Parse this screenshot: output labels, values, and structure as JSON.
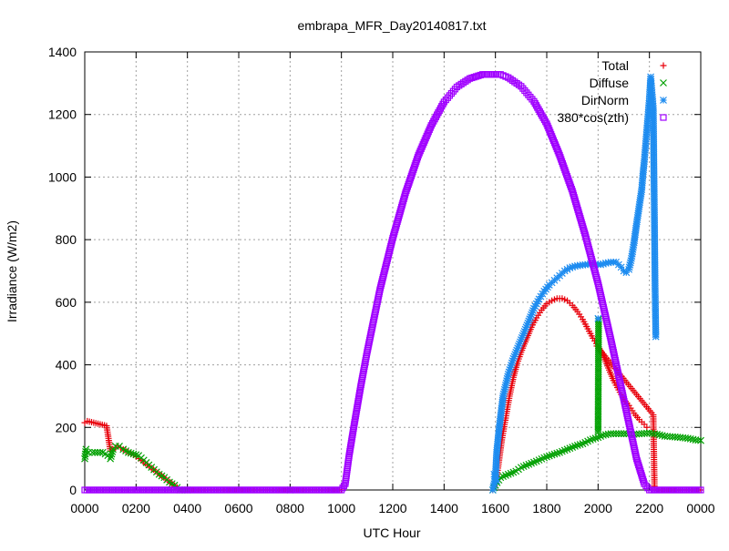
{
  "chart_data": {
    "type": "scatter",
    "title": "embrapa_MFR_Day20140817.txt",
    "xlabel": "UTC Hour",
    "ylabel": "Irradiance (W/m2)",
    "xlim": [
      0,
      24
    ],
    "ylim": [
      0,
      1400
    ],
    "grid": true,
    "legend_position": "top-right",
    "x_ticks": [
      {
        "x": 0,
        "label": "0000"
      },
      {
        "x": 2,
        "label": "0200"
      },
      {
        "x": 4,
        "label": "0400"
      },
      {
        "x": 6,
        "label": "0600"
      },
      {
        "x": 8,
        "label": "0800"
      },
      {
        "x": 10,
        "label": "1000"
      },
      {
        "x": 12,
        "label": "1200"
      },
      {
        "x": 14,
        "label": "1400"
      },
      {
        "x": 16,
        "label": "1600"
      },
      {
        "x": 18,
        "label": "1800"
      },
      {
        "x": 20,
        "label": "2000"
      },
      {
        "x": 22,
        "label": "2200"
      },
      {
        "x": 24,
        "label": "0000"
      }
    ],
    "y_ticks": [
      {
        "y": 0,
        "label": "0"
      },
      {
        "y": 200,
        "label": "200"
      },
      {
        "y": 400,
        "label": "400"
      },
      {
        "y": 600,
        "label": "600"
      },
      {
        "y": 800,
        "label": "800"
      },
      {
        "y": 1000,
        "label": "1000"
      },
      {
        "y": 1200,
        "label": "1200"
      },
      {
        "y": 1400,
        "label": "1400"
      }
    ],
    "series": [
      {
        "name": "Total",
        "marker": "plus",
        "color": "#e8000b",
        "points": [
          [
            0.0,
            215
          ],
          [
            0.1,
            220
          ],
          [
            0.85,
            205
          ],
          [
            1.0,
            125
          ],
          [
            1.3,
            140
          ],
          [
            1.6,
            125
          ],
          [
            1.9,
            112
          ],
          [
            2.2,
            95
          ],
          [
            2.6,
            70
          ],
          [
            3.0,
            45
          ],
          [
            3.4,
            20
          ],
          [
            3.6,
            8
          ],
          [
            3.7,
            0
          ],
          [
            4,
            0
          ],
          [
            6,
            0
          ],
          [
            8,
            0
          ],
          [
            10,
            0
          ],
          [
            15.9,
            0
          ],
          [
            16.0,
            20
          ],
          [
            16.1,
            70
          ],
          [
            16.25,
            160
          ],
          [
            16.4,
            230
          ],
          [
            16.55,
            300
          ],
          [
            16.7,
            360
          ],
          [
            16.85,
            405
          ],
          [
            17.0,
            440
          ],
          [
            17.2,
            480
          ],
          [
            17.4,
            520
          ],
          [
            17.6,
            550
          ],
          [
            17.8,
            575
          ],
          [
            18.0,
            595
          ],
          [
            18.2,
            605
          ],
          [
            18.4,
            612
          ],
          [
            18.6,
            612
          ],
          [
            18.8,
            605
          ],
          [
            19.0,
            590
          ],
          [
            19.2,
            570
          ],
          [
            19.4,
            545
          ],
          [
            19.6,
            515
          ],
          [
            19.8,
            485
          ],
          [
            20.0,
            460
          ],
          [
            20.2,
            430
          ],
          [
            20.4,
            390
          ],
          [
            20.6,
            350
          ],
          [
            20.8,
            320
          ],
          [
            21.0,
            290
          ],
          [
            21.2,
            270
          ],
          [
            21.4,
            245
          ],
          [
            21.6,
            225
          ],
          [
            21.8,
            210
          ],
          [
            21.9,
            200
          ],
          [
            19.95,
            460
          ],
          [
            22.15,
            240
          ],
          [
            22.2,
            0
          ],
          [
            24,
            0
          ]
        ]
      },
      {
        "name": "Diffuse",
        "marker": "cross",
        "color": "#00a000",
        "points": [
          [
            0.0,
            100
          ],
          [
            0.05,
            130
          ],
          [
            0.15,
            120
          ],
          [
            0.3,
            120
          ],
          [
            0.5,
            120
          ],
          [
            0.7,
            120
          ],
          [
            0.9,
            110
          ],
          [
            1.0,
            100
          ],
          [
            1.1,
            130
          ],
          [
            1.2,
            140
          ],
          [
            1.35,
            140
          ],
          [
            1.5,
            130
          ],
          [
            1.7,
            120
          ],
          [
            1.9,
            115
          ],
          [
            2.1,
            110
          ],
          [
            2.3,
            95
          ],
          [
            2.5,
            80
          ],
          [
            2.7,
            65
          ],
          [
            2.9,
            50
          ],
          [
            3.1,
            40
          ],
          [
            3.3,
            25
          ],
          [
            3.5,
            15
          ],
          [
            3.6,
            8
          ],
          [
            3.7,
            0
          ],
          [
            4,
            0
          ],
          [
            8,
            0
          ],
          [
            15.9,
            0
          ],
          [
            16.0,
            15
          ],
          [
            16.2,
            40
          ],
          [
            16.5,
            50
          ],
          [
            16.8,
            60
          ],
          [
            17.0,
            72
          ],
          [
            17.3,
            82
          ],
          [
            17.6,
            92
          ],
          [
            17.9,
            103
          ],
          [
            18.2,
            112
          ],
          [
            18.5,
            120
          ],
          [
            18.8,
            130
          ],
          [
            19.1,
            140
          ],
          [
            19.4,
            148
          ],
          [
            19.7,
            160
          ],
          [
            20.0,
            168
          ],
          [
            20.2,
            175
          ],
          [
            20.5,
            180
          ],
          [
            20.8,
            180
          ],
          [
            21.1,
            180
          ],
          [
            21.4,
            178
          ],
          [
            21.7,
            180
          ],
          [
            22.0,
            182
          ],
          [
            22.3,
            178
          ],
          [
            22.6,
            172
          ],
          [
            22.9,
            170
          ],
          [
            23.2,
            168
          ],
          [
            23.5,
            165
          ],
          [
            23.8,
            160
          ],
          [
            24.0,
            158
          ],
          [
            20.0,
            185
          ],
          [
            20.02,
            545
          ]
        ]
      },
      {
        "name": "DirNorm",
        "marker": "star",
        "color": "#1e8cf0",
        "points": [
          [
            15.9,
            0
          ],
          [
            16.0,
            40
          ],
          [
            16.05,
            120
          ],
          [
            16.15,
            200
          ],
          [
            16.3,
            300
          ],
          [
            16.5,
            370
          ],
          [
            16.7,
            420
          ],
          [
            16.9,
            460
          ],
          [
            17.1,
            500
          ],
          [
            17.3,
            540
          ],
          [
            17.5,
            580
          ],
          [
            17.7,
            610
          ],
          [
            17.9,
            635
          ],
          [
            18.1,
            655
          ],
          [
            18.3,
            670
          ],
          [
            18.5,
            685
          ],
          [
            18.7,
            700
          ],
          [
            18.9,
            710
          ],
          [
            19.1,
            715
          ],
          [
            19.3,
            718
          ],
          [
            19.5,
            720
          ],
          [
            19.7,
            722
          ],
          [
            19.9,
            722
          ],
          [
            20.1,
            720
          ],
          [
            20.3,
            725
          ],
          [
            20.5,
            728
          ],
          [
            20.7,
            728
          ],
          [
            20.9,
            712
          ],
          [
            21.0,
            700
          ],
          [
            21.1,
            695
          ],
          [
            21.2,
            705
          ],
          [
            21.3,
            740
          ],
          [
            21.4,
            790
          ],
          [
            21.5,
            850
          ],
          [
            21.6,
            905
          ],
          [
            21.7,
            960
          ],
          [
            21.75,
            1010
          ],
          [
            21.8,
            1050
          ],
          [
            21.85,
            1100
          ],
          [
            21.9,
            1150
          ],
          [
            21.95,
            1200
          ],
          [
            22.0,
            1250
          ],
          [
            22.05,
            1320
          ],
          [
            22.1,
            1270
          ],
          [
            22.15,
            1220
          ],
          [
            22.2,
            825
          ],
          [
            22.22,
            650
          ],
          [
            22.25,
            490
          ],
          [
            15.95,
            50
          ],
          [
            16.05,
            30
          ],
          [
            20.0,
            548
          ]
        ]
      },
      {
        "name": "380*cos(zth)",
        "marker": "square",
        "color": "#a000ff",
        "points": [
          [
            0,
            0
          ],
          [
            0.5,
            0
          ],
          [
            1,
            0
          ],
          [
            1.5,
            0
          ],
          [
            2,
            0
          ],
          [
            2.5,
            0
          ],
          [
            3,
            0
          ],
          [
            3.5,
            0
          ],
          [
            4,
            0
          ],
          [
            4.5,
            0
          ],
          [
            5,
            0
          ],
          [
            5.5,
            0
          ],
          [
            6,
            0
          ],
          [
            6.5,
            0
          ],
          [
            7,
            0
          ],
          [
            7.5,
            0
          ],
          [
            8,
            0
          ],
          [
            8.5,
            0
          ],
          [
            9,
            0
          ],
          [
            9.5,
            0
          ],
          [
            10.0,
            0
          ],
          [
            10.15,
            20
          ],
          [
            10.3,
            110
          ],
          [
            10.5,
            210
          ],
          [
            10.75,
            330
          ],
          [
            11.0,
            440
          ],
          [
            11.5,
            640
          ],
          [
            12.0,
            805
          ],
          [
            12.5,
            950
          ],
          [
            13.0,
            1070
          ],
          [
            13.5,
            1165
          ],
          [
            14.0,
            1240
          ],
          [
            14.5,
            1288
          ],
          [
            15.0,
            1315
          ],
          [
            15.5,
            1328
          ],
          [
            16.2,
            1328
          ],
          [
            16.5,
            1318
          ],
          [
            17.0,
            1290
          ],
          [
            17.5,
            1242
          ],
          [
            18.0,
            1170
          ],
          [
            18.5,
            1070
          ],
          [
            19.0,
            955
          ],
          [
            19.5,
            815
          ],
          [
            20.0,
            660
          ],
          [
            20.5,
            480
          ],
          [
            21.0,
            290
          ],
          [
            21.5,
            100
          ],
          [
            21.8,
            20
          ],
          [
            22.0,
            0
          ],
          [
            22.5,
            0
          ],
          [
            23,
            0
          ],
          [
            23.5,
            0
          ],
          [
            24,
            0
          ]
        ]
      }
    ]
  }
}
